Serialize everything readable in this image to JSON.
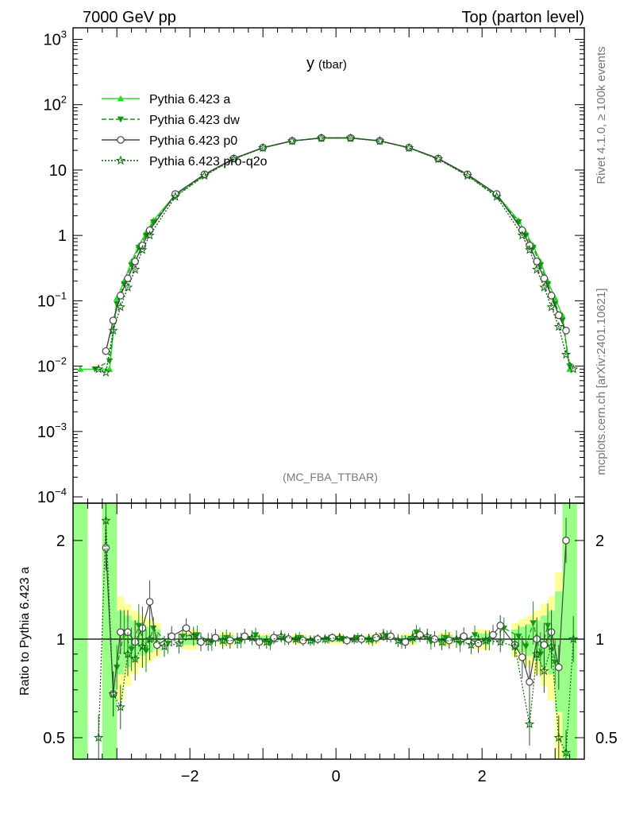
{
  "header": {
    "left": "7000 GeV pp",
    "right": "Top (parton level)"
  },
  "side_labels": {
    "rivet": "Rivet 4.1.0, ≥ 100k events",
    "mcplots": "mcplots.cern.ch [arXiv:2401.10621]"
  },
  "watermark": "(MC_FBA_TTBAR)",
  "chart_data": [
    {
      "type": "line",
      "title_main": "y",
      "title_sub": "(tbar)",
      "yscale": "log",
      "xlim": [
        -3.6,
        3.4
      ],
      "ylim": [
        8e-05,
        1500
      ],
      "yticks": [
        {
          "value": 1000,
          "base": "10",
          "exp": "3",
          "label": ""
        },
        {
          "value": 100,
          "base": "10",
          "exp": "2",
          "label": ""
        },
        {
          "value": 10,
          "base": "",
          "exp": "",
          "label": "10"
        },
        {
          "value": 1,
          "base": "",
          "exp": "",
          "label": "1"
        },
        {
          "value": 0.1,
          "base": "10",
          "exp": "−1",
          "label": ""
        },
        {
          "value": 0.01,
          "base": "10",
          "exp": "−2",
          "label": ""
        },
        {
          "value": 0.001,
          "base": "10",
          "exp": "−3",
          "label": ""
        },
        {
          "value": 0.0001,
          "base": "10",
          "exp": "−4",
          "label": ""
        }
      ],
      "legend_position": "top-left",
      "series": [
        {
          "name": "Pythia 6.423 a",
          "color": "#22dd22",
          "dash": "",
          "marker": "triangle-up",
          "x": [
            -3.5,
            -3.1,
            -3.0,
            -2.9,
            -2.8,
            -2.7,
            -2.6,
            -2.5,
            -2.2,
            -1.8,
            -1.4,
            -1.0,
            -0.6,
            -0.2,
            0.2,
            0.6,
            1.0,
            1.4,
            1.8,
            2.2,
            2.5,
            2.6,
            2.7,
            2.8,
            2.9,
            3.0,
            3.1,
            3.2
          ],
          "y": [
            0.009,
            0.009,
            0.11,
            0.2,
            0.4,
            0.7,
            1.1,
            1.7,
            4.2,
            8.5,
            15,
            22,
            28,
            31,
            31,
            28,
            22,
            15,
            8.5,
            4.2,
            1.7,
            1.1,
            0.7,
            0.4,
            0.2,
            0.11,
            0.06,
            0.009
          ]
        },
        {
          "name": "Pythia 6.423 dw",
          "color": "#119911",
          "dash": "6,3",
          "marker": "triangle-down",
          "x": [
            -3.3,
            -3.1,
            -3.0,
            -2.9,
            -2.8,
            -2.7,
            -2.6,
            -2.5,
            -2.2,
            -1.8,
            -1.4,
            -1.0,
            -0.6,
            -0.2,
            0.2,
            0.6,
            1.0,
            1.4,
            1.8,
            2.2,
            2.5,
            2.6,
            2.7,
            2.8,
            2.9,
            3.0,
            3.1,
            3.2
          ],
          "y": [
            0.009,
            0.012,
            0.09,
            0.18,
            0.35,
            0.65,
            1.0,
            1.6,
            4.0,
            8.3,
            14.8,
            22,
            28,
            31,
            31,
            28,
            22,
            14.8,
            8.3,
            4.0,
            1.6,
            1.0,
            0.65,
            0.35,
            0.18,
            0.09,
            0.05,
            0.01
          ]
        },
        {
          "name": "Pythia 6.423 p0",
          "color": "#444444",
          "dash": "",
          "marker": "circle-open",
          "x": [
            -3.15,
            -3.05,
            -2.95,
            -2.85,
            -2.75,
            -2.65,
            -2.55,
            -2.2,
            -1.8,
            -1.4,
            -1.0,
            -0.6,
            -0.2,
            0.2,
            0.6,
            1.0,
            1.4,
            1.8,
            2.2,
            2.55,
            2.65,
            2.75,
            2.85,
            2.95,
            3.05,
            3.15
          ],
          "y": [
            0.017,
            0.05,
            0.12,
            0.22,
            0.4,
            0.7,
            1.2,
            4.3,
            8.6,
            15,
            22,
            28,
            31,
            31,
            28,
            22,
            15,
            8.6,
            4.3,
            1.2,
            0.7,
            0.4,
            0.22,
            0.12,
            0.06,
            0.035
          ]
        },
        {
          "name": "Pythia 6.423 pro-q2o",
          "color": "#116611",
          "dash": "2,2",
          "marker": "star",
          "x": [
            -3.25,
            -3.15,
            -3.05,
            -2.95,
            -2.85,
            -2.75,
            -2.65,
            -2.55,
            -2.2,
            -1.8,
            -1.4,
            -1.0,
            -0.6,
            -0.2,
            0.2,
            0.6,
            1.0,
            1.4,
            1.8,
            2.2,
            2.55,
            2.65,
            2.75,
            2.85,
            2.95,
            3.05,
            3.15,
            3.25
          ],
          "y": [
            0.009,
            0.008,
            0.035,
            0.08,
            0.16,
            0.3,
            0.6,
            1.0,
            3.9,
            8.2,
            14.7,
            21.8,
            27.8,
            30.8,
            30.8,
            27.8,
            21.8,
            14.7,
            8.2,
            3.9,
            1.0,
            0.6,
            0.3,
            0.16,
            0.08,
            0.04,
            0.015,
            0.009
          ]
        }
      ]
    },
    {
      "type": "line",
      "ylabel": "Ratio to Pythia 6.423 a",
      "yscale": "log",
      "xlim": [
        -3.6,
        3.4
      ],
      "ylim": [
        0.43,
        2.6
      ],
      "yticks": [
        {
          "value": 0.5,
          "label": "0.5"
        },
        {
          "value": 1,
          "label": "1"
        },
        {
          "value": 2,
          "label": "2"
        }
      ],
      "xticks": [
        {
          "value": -2,
          "label": "−2"
        },
        {
          "value": 0,
          "label": "0"
        },
        {
          "value": 2,
          "label": "2"
        }
      ],
      "reference_line": 1,
      "band_yellow": {
        "x": [
          -3.5,
          -3.1,
          -3.0,
          -2.9,
          -2.8,
          -2.7,
          -2.6,
          -2.5,
          -2.0,
          -1.5,
          -1.0,
          -0.5,
          0.0,
          0.5,
          1.0,
          1.5,
          2.0,
          2.5,
          2.6,
          2.7,
          2.8,
          2.9,
          3.0,
          3.1,
          3.2
        ],
        "half_width": [
          1.6,
          1.6,
          0.35,
          0.28,
          0.22,
          0.18,
          0.15,
          0.12,
          0.07,
          0.05,
          0.04,
          0.035,
          0.035,
          0.035,
          0.04,
          0.05,
          0.07,
          0.12,
          0.15,
          0.18,
          0.22,
          0.28,
          0.35,
          0.6,
          1.6
        ]
      },
      "band_green": {
        "x": [
          -3.5,
          -3.1,
          -3.0,
          -2.9,
          -2.8,
          -2.7,
          -2.6,
          -2.5,
          -2.0,
          -1.5,
          -1.0,
          -0.5,
          0.0,
          0.5,
          1.0,
          1.5,
          2.0,
          2.5,
          2.6,
          2.7,
          2.8,
          2.9,
          3.0,
          3.1,
          3.2
        ],
        "half_width": [
          1.6,
          1.6,
          0.22,
          0.18,
          0.14,
          0.11,
          0.09,
          0.07,
          0.04,
          0.03,
          0.025,
          0.02,
          0.02,
          0.02,
          0.025,
          0.03,
          0.04,
          0.07,
          0.09,
          0.11,
          0.14,
          0.18,
          0.22,
          0.4,
          1.6
        ]
      },
      "series": [
        {
          "name": "Pythia 6.423 dw",
          "color": "#119911",
          "dash": "6,3",
          "marker": "triangle-down",
          "x": [
            -3.0,
            -2.9,
            -2.8,
            -2.7,
            -2.6,
            -2.5,
            -2.3,
            -2.1,
            -1.9,
            -1.7,
            -1.5,
            -1.3,
            -1.1,
            -0.9,
            -0.7,
            -0.5,
            -0.3,
            -0.1,
            0.1,
            0.3,
            0.5,
            0.7,
            0.9,
            1.1,
            1.3,
            1.5,
            1.7,
            1.9,
            2.1,
            2.3,
            2.5,
            2.6,
            2.7,
            2.8,
            2.9,
            3.0
          ],
          "y": [
            0.82,
            1.05,
            0.93,
            1.1,
            0.92,
            1.08,
            0.97,
            1.02,
            1.03,
            0.98,
            1.01,
            0.99,
            1.03,
            0.97,
            1.0,
            1.01,
            0.99,
            1.0,
            1.0,
            1.01,
            0.99,
            1.02,
            0.98,
            1.05,
            0.98,
            1.01,
            0.97,
            1.03,
            0.99,
            1.08,
            1.02,
            0.95,
            1.12,
            0.9,
            1.1,
            0.85
          ]
        },
        {
          "name": "Pythia 6.423 p0",
          "color": "#444444",
          "dash": "",
          "marker": "circle-open",
          "x": [
            -3.15,
            -3.05,
            -2.95,
            -2.85,
            -2.75,
            -2.65,
            -2.55,
            -2.45,
            -2.25,
            -2.05,
            -1.85,
            -1.65,
            -1.45,
            -1.25,
            -1.05,
            -0.85,
            -0.65,
            -0.45,
            -0.25,
            -0.05,
            0.15,
            0.35,
            0.55,
            0.75,
            0.95,
            1.15,
            1.35,
            1.55,
            1.75,
            1.95,
            2.15,
            2.25,
            2.45,
            2.55,
            2.65,
            2.75,
            2.85,
            2.95,
            3.05,
            3.15
          ],
          "y": [
            1.9,
            0.68,
            1.05,
            1.05,
            0.98,
            1.08,
            1.3,
            0.96,
            1.02,
            1.08,
            0.98,
            1.01,
            0.99,
            1.02,
            0.98,
            1.01,
            1.0,
            0.99,
            1.0,
            1.01,
            0.99,
            1.0,
            1.01,
            1.02,
            0.98,
            1.03,
            1.0,
            0.99,
            1.02,
            0.97,
            1.03,
            1.1,
            0.96,
            0.88,
            0.74,
            1.0,
            0.96,
            1.05,
            0.82,
            2.0
          ]
        },
        {
          "name": "Pythia 6.423 pro-q2o",
          "color": "#116611",
          "dash": "2,2",
          "marker": "star",
          "x": [
            -3.25,
            -3.15,
            -3.05,
            -2.95,
            -2.85,
            -2.75,
            -2.65,
            -2.55,
            -2.35,
            -2.15,
            -1.95,
            -1.75,
            -1.55,
            -1.35,
            -1.15,
            -0.95,
            -0.75,
            -0.55,
            -0.35,
            -0.15,
            0.05,
            0.25,
            0.45,
            0.65,
            0.85,
            1.05,
            1.25,
            1.45,
            1.65,
            1.85,
            2.05,
            2.25,
            2.45,
            2.65,
            2.75,
            2.85,
            2.95,
            3.05,
            3.15,
            3.25
          ],
          "y": [
            0.5,
            2.3,
            0.68,
            0.62,
            0.9,
            0.87,
            0.95,
            1.0,
            0.95,
            0.97,
            1.02,
            0.98,
            0.99,
            0.99,
            1.01,
            0.98,
            1.02,
            1.0,
            0.99,
            1.0,
            1.01,
            1.0,
            1.0,
            1.03,
            0.99,
            1.01,
            1.02,
            0.98,
            1.0,
            0.96,
            0.99,
            0.98,
            0.95,
            0.55,
            0.9,
            0.8,
            0.95,
            0.5,
            0.45,
            1.0
          ]
        }
      ]
    }
  ]
}
